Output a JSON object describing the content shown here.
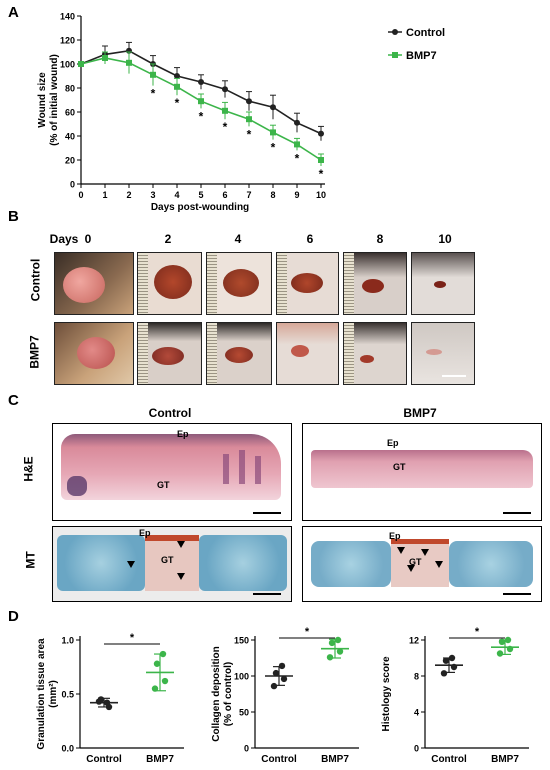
{
  "panels": {
    "a": "A",
    "b": "B",
    "c": "C",
    "d": "D"
  },
  "chart_data": [
    {
      "type": "line",
      "x": [
        0,
        1,
        2,
        3,
        4,
        5,
        6,
        7,
        8,
        9,
        10
      ],
      "xlabel": "Days post-wounding",
      "ylabel_line1": "Wound size",
      "ylabel_line2": "(% of initial wound)",
      "ylim": [
        0,
        140
      ],
      "yticks": [
        0,
        20,
        40,
        60,
        80,
        100,
        120,
        140
      ],
      "series": [
        {
          "name": "Control",
          "color": "#222222",
          "values": [
            100,
            108,
            111,
            100,
            90,
            85,
            79,
            69,
            64,
            51,
            42
          ],
          "errors": [
            0,
            7,
            7,
            7,
            7,
            6,
            7,
            8,
            10,
            8,
            6
          ]
        },
        {
          "name": "BMP7",
          "color": "#3cb54a",
          "values": [
            100,
            105,
            101,
            91,
            81,
            69,
            61,
            54,
            43,
            33,
            20
          ],
          "errors": [
            0,
            5,
            9,
            9,
            7,
            6,
            7,
            6,
            6,
            5,
            5
          ]
        }
      ],
      "significance": {
        "marker": "*",
        "days": [
          3,
          4,
          5,
          6,
          7,
          8,
          9,
          10
        ]
      },
      "legend_position": "top-right"
    },
    {
      "type": "scatter",
      "categories": [
        "Control",
        "BMP7"
      ],
      "ylabel_line1": "Granulation tissue area",
      "ylabel_line2": "(mm²)",
      "ylim": [
        0.0,
        1.0
      ],
      "yticks": [
        "0.0",
        "0.5",
        "1.0"
      ],
      "tick_values": [
        0,
        0.5,
        1.0
      ],
      "points": [
        [
          0.43,
          0.38,
          0.45,
          0.42
        ],
        [
          0.55,
          0.62,
          0.78,
          0.87
        ]
      ],
      "means": [
        0.42,
        0.7
      ],
      "sd": [
        0.04,
        0.17
      ],
      "significance": "*"
    },
    {
      "type": "scatter",
      "categories": [
        "Control",
        "BMP7"
      ],
      "ylabel_line1": "Collagen deposition",
      "ylabel_line2": "(% of control)",
      "ylim": [
        0,
        150
      ],
      "yticks": [
        "0",
        "50",
        "100",
        "150"
      ],
      "tick_values": [
        0,
        50,
        100,
        150
      ],
      "points": [
        [
          86,
          96,
          104,
          114
        ],
        [
          126,
          134,
          146,
          150
        ]
      ],
      "means": [
        100,
        138
      ],
      "sd": [
        13,
        13
      ],
      "significance": "*"
    },
    {
      "type": "scatter",
      "categories": [
        "Control",
        "BMP7"
      ],
      "ylabel_line1": "Histology score",
      "ylabel_line2": "",
      "ylim": [
        0,
        12
      ],
      "yticks": [
        "0",
        "4",
        "8",
        "12"
      ],
      "tick_values": [
        0,
        4,
        8,
        12
      ],
      "points": [
        [
          8.3,
          9.0,
          9.7,
          10.0
        ],
        [
          10.5,
          11.0,
          11.8,
          12.0
        ]
      ],
      "means": [
        9.2,
        11.2
      ],
      "sd": [
        0.8,
        0.8
      ],
      "significance": "*"
    }
  ],
  "panel_b": {
    "days_label": "Days",
    "days": [
      "0",
      "2",
      "4",
      "6",
      "8",
      "10"
    ],
    "rows": [
      "Control",
      "BMP7"
    ]
  },
  "panel_c": {
    "col_titles": [
      "Control",
      "BMP7"
    ],
    "row_labels": [
      "H&E",
      "MT"
    ],
    "ep": "Ep",
    "gt": "GT"
  }
}
